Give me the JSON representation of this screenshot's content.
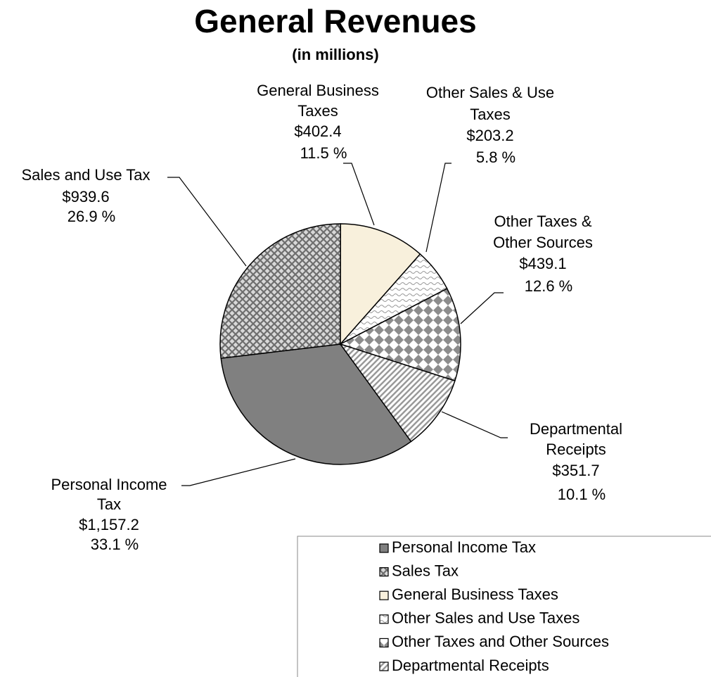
{
  "chart_data": {
    "type": "pie",
    "title": "General Revenues",
    "subtitle": "(in millions)",
    "series": [
      {
        "name": "Personal Income Tax",
        "color": "#808080"
      },
      {
        "name": "Sales Tax",
        "color": "#6e6e6e"
      },
      {
        "name": "General Business Taxes",
        "color": "#f8f0dc"
      },
      {
        "name": "Other Sales and Use Taxes",
        "color": "#9a9a9a"
      },
      {
        "name": "Other Taxes and Other Sources",
        "color": "#8c8c8c"
      },
      {
        "name": "Departmental Receipts",
        "color": "#999999"
      }
    ],
    "labels": [
      [
        "Personal Income",
        "Tax"
      ],
      [
        "Sales and Use Tax"
      ],
      [
        "General Business",
        "Taxes"
      ],
      [
        "Other Sales & Use",
        "Taxes"
      ],
      [
        "Other Taxes &",
        "Other Sources"
      ],
      [
        "Departmental",
        "Receipts"
      ]
    ],
    "values": [
      1157.2,
      939.6,
      402.4,
      203.2,
      439.1,
      351.7
    ],
    "value_labels": [
      "$1,157.2",
      "$939.6",
      "$402.4",
      "$203.2",
      "$439.1",
      "$351.7"
    ],
    "percents": [
      33.1,
      26.9,
      11.5,
      5.8,
      12.6,
      10.1
    ],
    "percent_labels": [
      "33.1 %",
      "26.9 %",
      "11.5 %",
      "5.8 %",
      "12.6 %",
      "10.1 %"
    ]
  }
}
